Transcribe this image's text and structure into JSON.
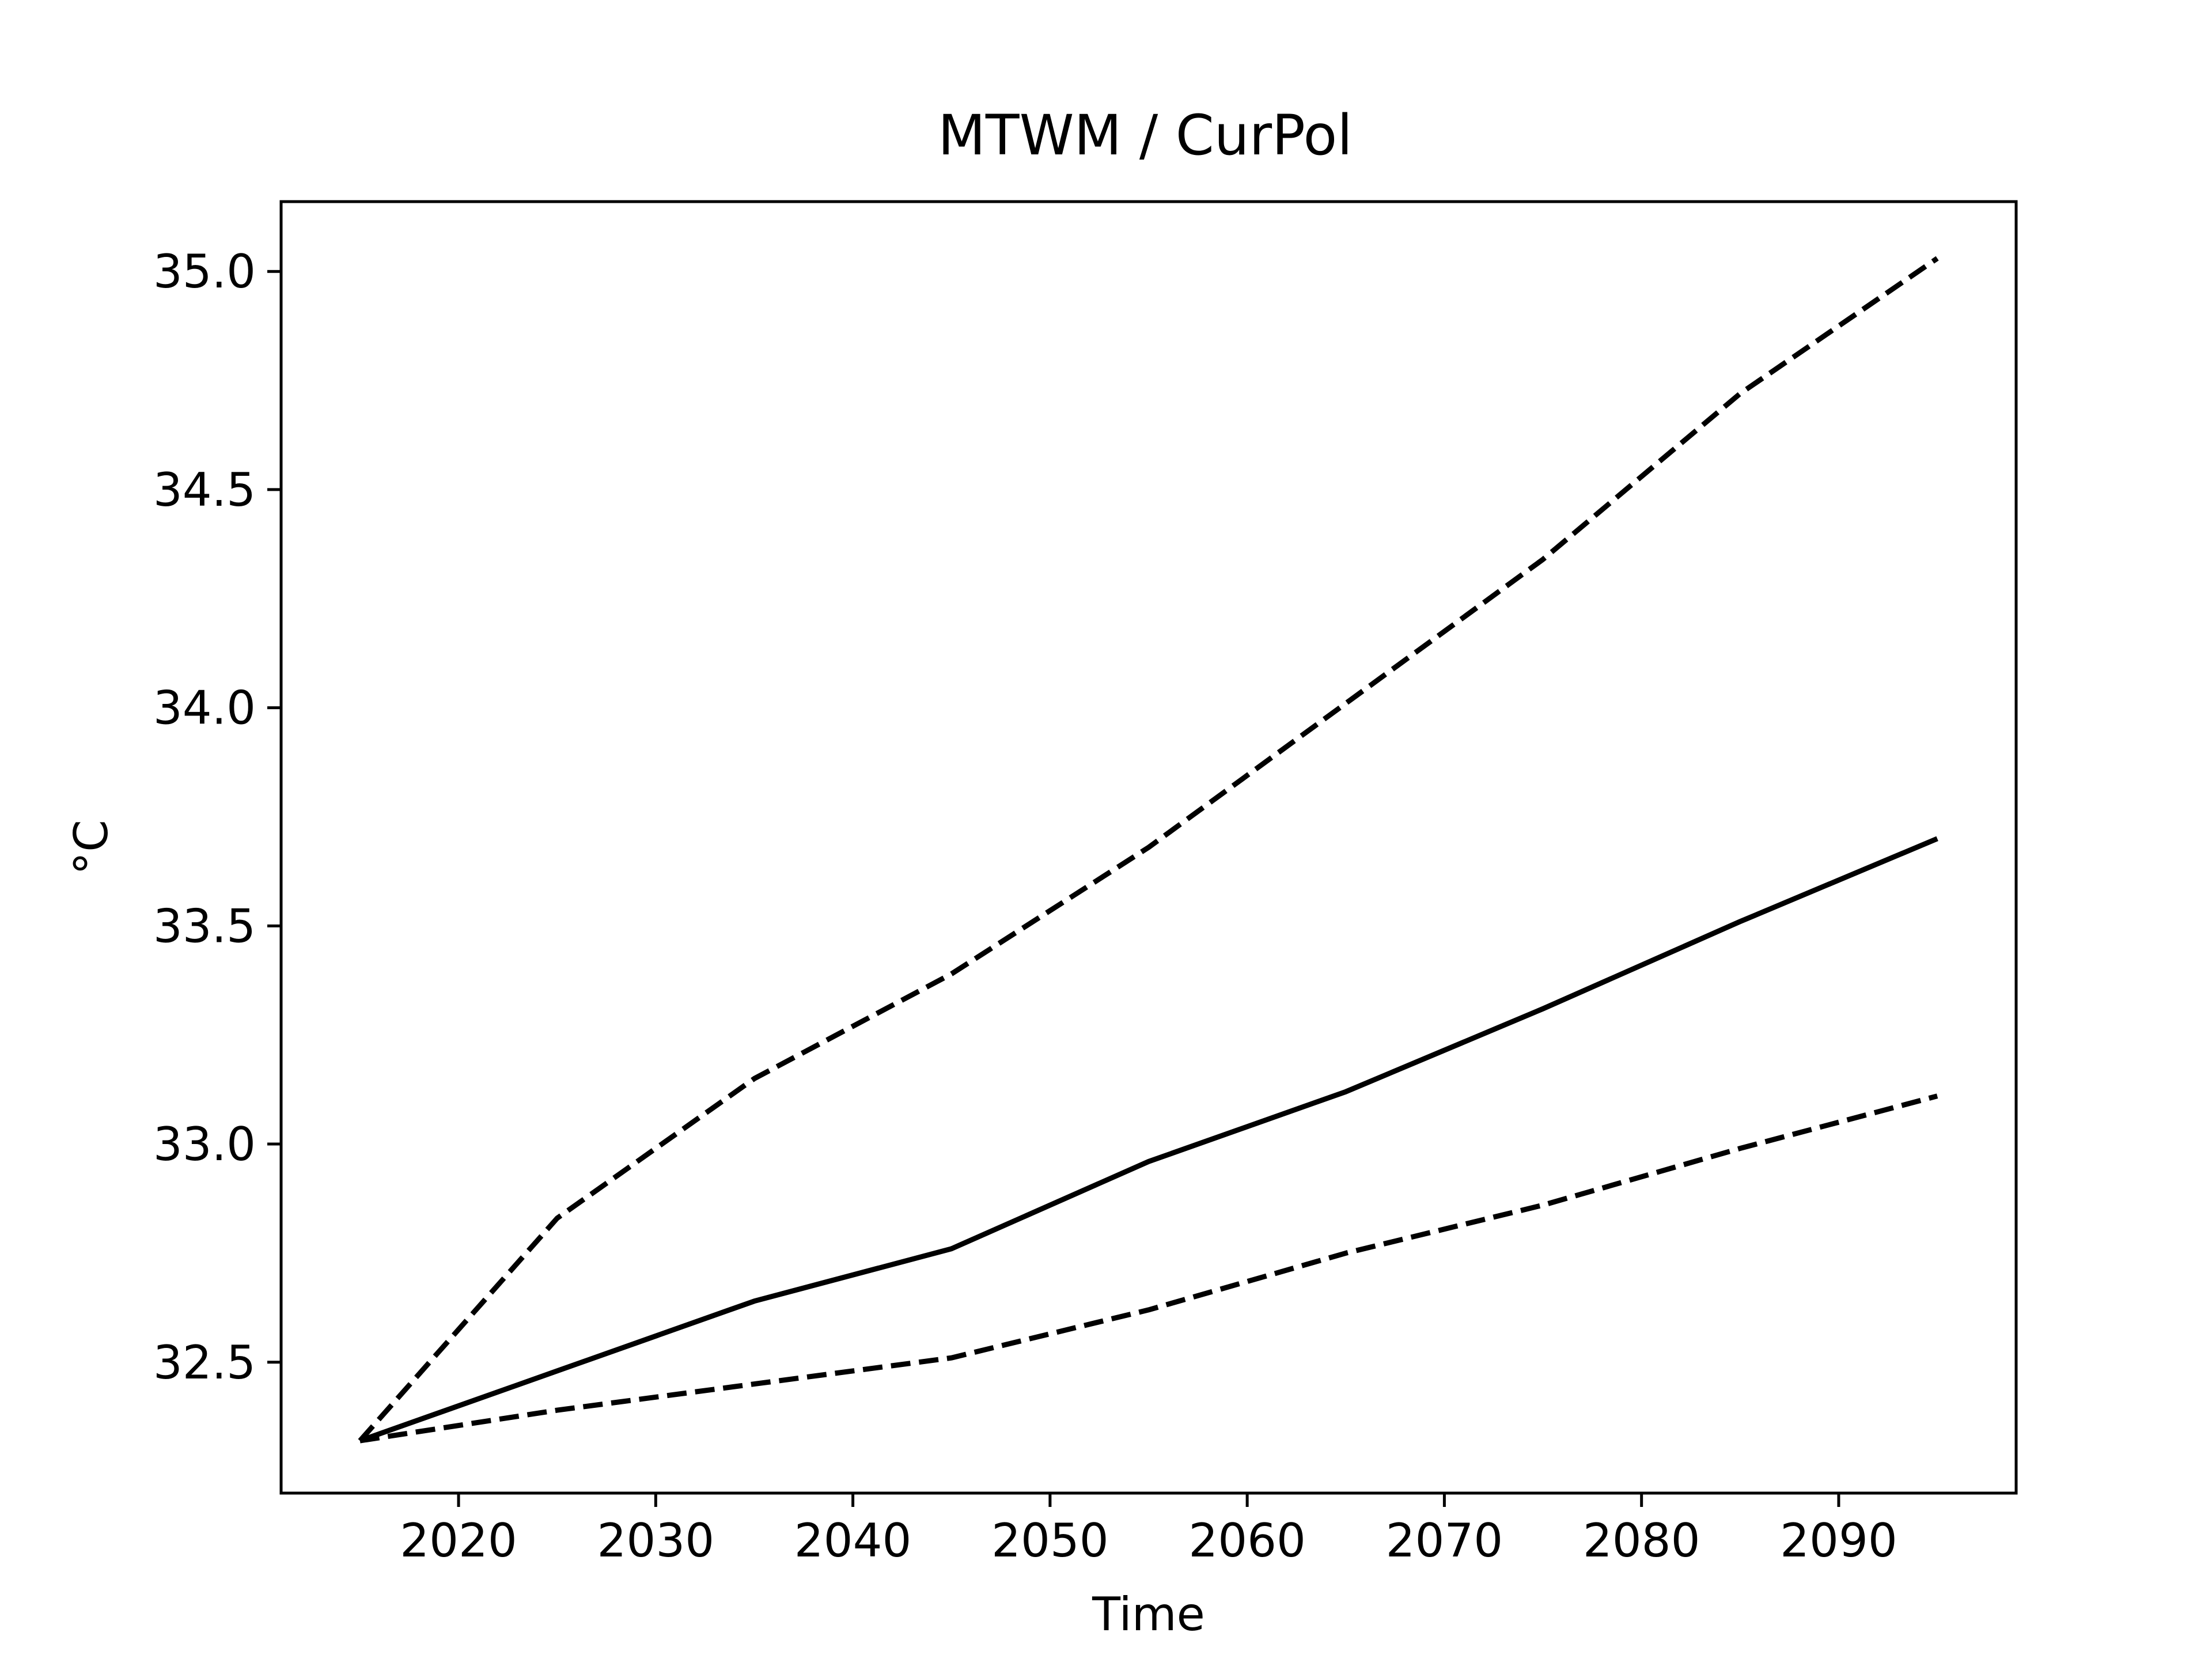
{
  "chart_data": {
    "type": "line",
    "title": "MTWM / CurPol",
    "xlabel": "Time",
    "ylabel": "°C",
    "xlim": [
      2011,
      2099
    ],
    "ylim": [
      32.2,
      35.16
    ],
    "x_ticks": [
      2020,
      2030,
      2040,
      2050,
      2060,
      2070,
      2080,
      2090
    ],
    "y_ticks": [
      32.5,
      33.0,
      33.5,
      34.0,
      34.5,
      35.0
    ],
    "y_tick_labels": [
      "32.5",
      "33.0",
      "33.5",
      "34.0",
      "34.5",
      "35.0"
    ],
    "grid": false,
    "line_color": "#000000",
    "x": [
      2015,
      2025,
      2035,
      2045,
      2055,
      2065,
      2075,
      2085,
      2095
    ],
    "series": [
      {
        "style": "dashed",
        "values": [
          32.32,
          32.83,
          33.15,
          33.39,
          33.68,
          34.01,
          34.34,
          34.72,
          35.03
        ]
      },
      {
        "style": "solid",
        "values": [
          32.32,
          32.48,
          32.64,
          32.76,
          32.96,
          33.12,
          33.31,
          33.51,
          33.7
        ]
      },
      {
        "style": "dashed",
        "values": [
          32.32,
          32.39,
          32.45,
          32.51,
          32.62,
          32.75,
          32.86,
          32.99,
          33.11
        ]
      }
    ]
  }
}
